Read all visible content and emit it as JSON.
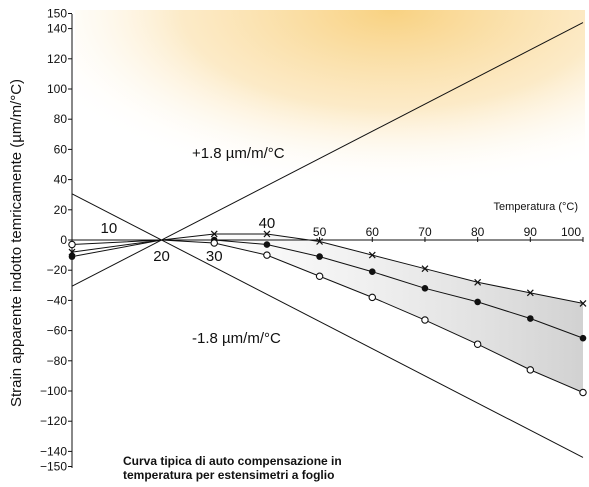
{
  "chart_data": {
    "type": "line",
    "title": "",
    "xlabel": "Temperatura (°C)",
    "ylabel": "Strain apparente indotto temricamente (µm/m/°C)",
    "xlim": [
      3,
      100
    ],
    "ylim": [
      -150,
      150
    ],
    "x_ticks": [
      10,
      20,
      30,
      40,
      50,
      60,
      70,
      80,
      90,
      100
    ],
    "y_ticks": [
      150,
      140,
      120,
      100,
      80,
      60,
      40,
      20,
      0,
      -20,
      -40,
      -60,
      -80,
      -100,
      -120,
      -140,
      -150
    ],
    "reference_lines": [
      {
        "label": "+1.8 µm/m/°C",
        "slope": 1.8,
        "x0": 20,
        "y0": 0
      },
      {
        "label": "-1.8 µm/m/°C",
        "slope": -1.8,
        "x0": 20,
        "y0": 0
      }
    ],
    "series": [
      {
        "marker": "x",
        "x": [
          3,
          20,
          30,
          40,
          50,
          60,
          70,
          80,
          90,
          100
        ],
        "y": [
          -8,
          0,
          4,
          4,
          -1,
          -10,
          -19,
          -28,
          -35,
          -42
        ]
      },
      {
        "marker": "filled-circle",
        "x": [
          3,
          20,
          30,
          40,
          50,
          60,
          70,
          80,
          90,
          100
        ],
        "y": [
          -11,
          0,
          0,
          -3,
          -11,
          -21,
          -32,
          -41,
          -52,
          -65
        ]
      },
      {
        "marker": "open-circle",
        "x": [
          3,
          20,
          30,
          40,
          50,
          60,
          70,
          80,
          90,
          100
        ],
        "y": [
          -3,
          0,
          -2,
          -10,
          -24,
          -38,
          -53,
          -69,
          -86,
          -101
        ]
      }
    ],
    "annotations": {
      "upper_line": "+1.8 µm/m/°C",
      "lower_line": "-1.8 µm/m/°C",
      "caption_line1": "Curva tipica di auto compensazione in",
      "caption_line2": "temperatura per estensimetri a foglio"
    },
    "colors": {
      "glow": "#f8cf7a",
      "band": "#cfcfcf",
      "line": "#111111"
    },
    "grid": false
  }
}
